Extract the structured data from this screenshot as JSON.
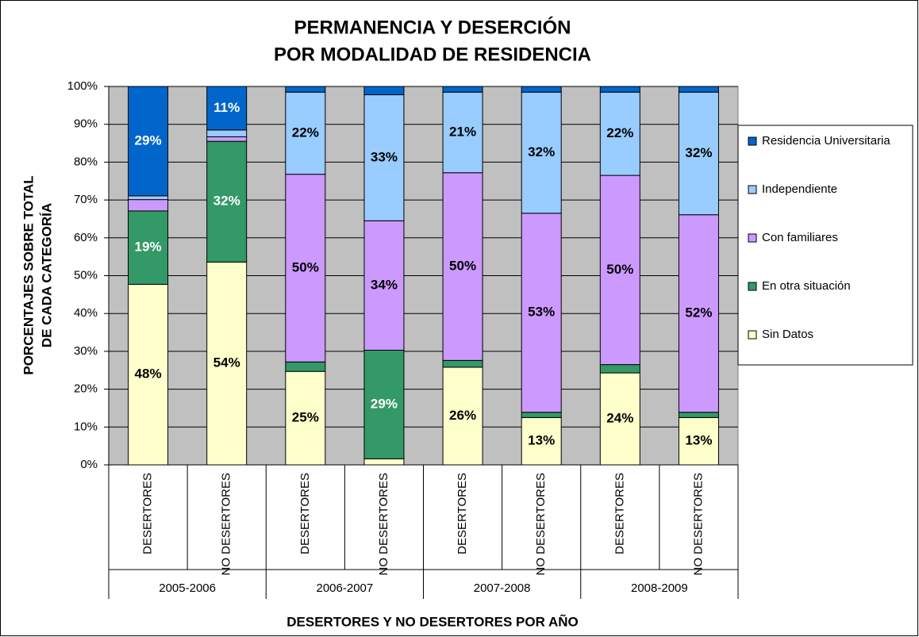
{
  "chart_data": {
    "type": "stacked_bar",
    "title": [
      "PERMANENCIA Y DESERCIÓN",
      "POR MODALIDAD DE RESIDENCIA"
    ],
    "y_label": [
      "PORCENTAJES SOBRE TOTAL",
      "DE CADA CATEGORÍA"
    ],
    "x_label": "DESERTORES Y NO DESERTORES POR AÑO",
    "categories": [
      "DESERTORES",
      "NO DESERTORES",
      "DESERTORES",
      "NO DESERTORES",
      "DESERTORES",
      "NO DESERTORES",
      "DESERTORES",
      "NO DESERTORES"
    ],
    "groups": [
      "2005-2006",
      "2006-2007",
      "2007-2008",
      "2008-2009"
    ],
    "series": [
      {
        "name": "Sin Datos",
        "color": "#ffffcc",
        "label_color": "#000000",
        "values": [
          47.7,
          53.6,
          24.7,
          1.6,
          25.8,
          12.5,
          24.3,
          12.5
        ],
        "value_labels": [
          "48%",
          "54%",
          "25%",
          null,
          "26%",
          "13%",
          "24%",
          "13%"
        ]
      },
      {
        "name": "En otra situación",
        "color": "#339966",
        "label_color": "#ffffff",
        "values": [
          19.4,
          31.9,
          2.5,
          28.7,
          1.8,
          1.4,
          2.2,
          1.4
        ],
        "value_labels": [
          "19%",
          "32%",
          null,
          "29%",
          null,
          null,
          null,
          null
        ]
      },
      {
        "name": "Con familiares",
        "color": "#cc99ff",
        "label_color": "#000000",
        "values": [
          3,
          1.2,
          49.6,
          34.2,
          49.6,
          52.6,
          50,
          52.2
        ],
        "value_labels": [
          null,
          null,
          "50%",
          "34%",
          "50%",
          "53%",
          "50%",
          "52%"
        ]
      },
      {
        "name": "Independiente",
        "color": "#99ccff",
        "label_color": "#000000",
        "values": [
          1,
          1.8,
          21.7,
          33.3,
          21.3,
          32,
          22,
          32.4
        ],
        "value_labels": [
          null,
          null,
          "22%",
          "33%",
          "21%",
          "32%",
          "22%",
          "32%"
        ]
      },
      {
        "name": "Residencia Universitaria",
        "color": "#0066cc",
        "label_color": "#ffffff",
        "values": [
          28.9,
          11.5,
          1.5,
          2.2,
          1.5,
          1.5,
          1.5,
          1.5
        ],
        "value_labels": [
          "29%",
          "11%",
          null,
          null,
          null,
          null,
          null,
          null
        ]
      }
    ],
    "ylim": [
      0,
      100
    ],
    "yticks": [
      {
        "value": 0,
        "label": "0%"
      },
      {
        "value": 10,
        "label": "10%"
      },
      {
        "value": 20,
        "label": "20%"
      },
      {
        "value": 30,
        "label": "30%"
      },
      {
        "value": 40,
        "label": "40%"
      },
      {
        "value": 50,
        "label": "50%"
      },
      {
        "value": 60,
        "label": "60%"
      },
      {
        "value": 70,
        "label": "70%"
      },
      {
        "value": 80,
        "label": "80%"
      },
      {
        "value": 90,
        "label": "90%"
      },
      {
        "value": 100,
        "label": "100%"
      }
    ],
    "grid": true,
    "legend": "right"
  }
}
